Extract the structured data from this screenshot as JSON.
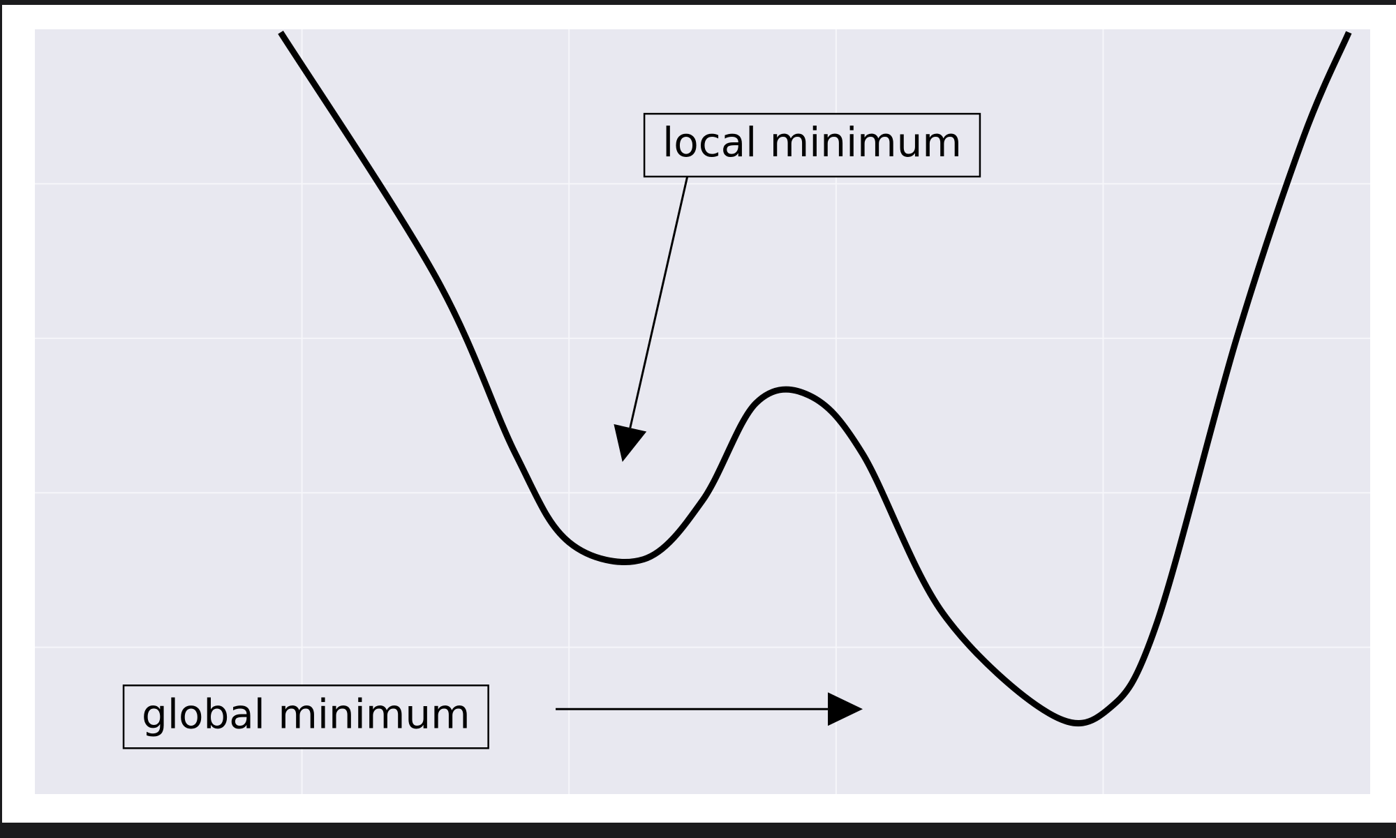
{
  "chart_data": {
    "type": "line",
    "title": "",
    "xlabel": "",
    "ylabel": "",
    "xlim": [
      -5,
      0
    ],
    "ylim": [
      -4.95,
      0
    ],
    "grid": true,
    "tick_labels_visible": false,
    "curve_color": "#000000",
    "plot_background": "#e8e8f0",
    "grid_color": "#f6f6fa",
    "series": [
      {
        "x": [
          -4.08,
          -3.5,
          -3.2,
          -3.0,
          -2.72,
          -2.5,
          -2.3,
          -2.1,
          -1.9,
          -1.6,
          -1.2,
          -0.98,
          -0.8,
          -0.5,
          -0.25,
          -0.08
        ],
        "y": [
          -0.02,
          -1.6,
          -2.75,
          -3.32,
          -3.43,
          -3.05,
          -2.42,
          -2.37,
          -2.75,
          -3.78,
          -4.43,
          -4.4,
          -3.85,
          -2.0,
          -0.7,
          -0.02
        ]
      }
    ],
    "annotations": [
      {
        "text": "local minimum",
        "box_style": "rectangle",
        "box_anchor": [
          -2.65,
          -0.75
        ],
        "arrow_tip": [
          -2.8,
          -2.8
        ],
        "arrow_start": [
          -2.55,
          -0.9
        ]
      },
      {
        "text": "global minimum",
        "box_style": "rectangle",
        "box_anchor": [
          -4.6,
          -4.45
        ],
        "arrow_tip": [
          -1.9,
          -4.4
        ],
        "arrow_start": [
          -3.05,
          -4.4
        ]
      }
    ]
  }
}
